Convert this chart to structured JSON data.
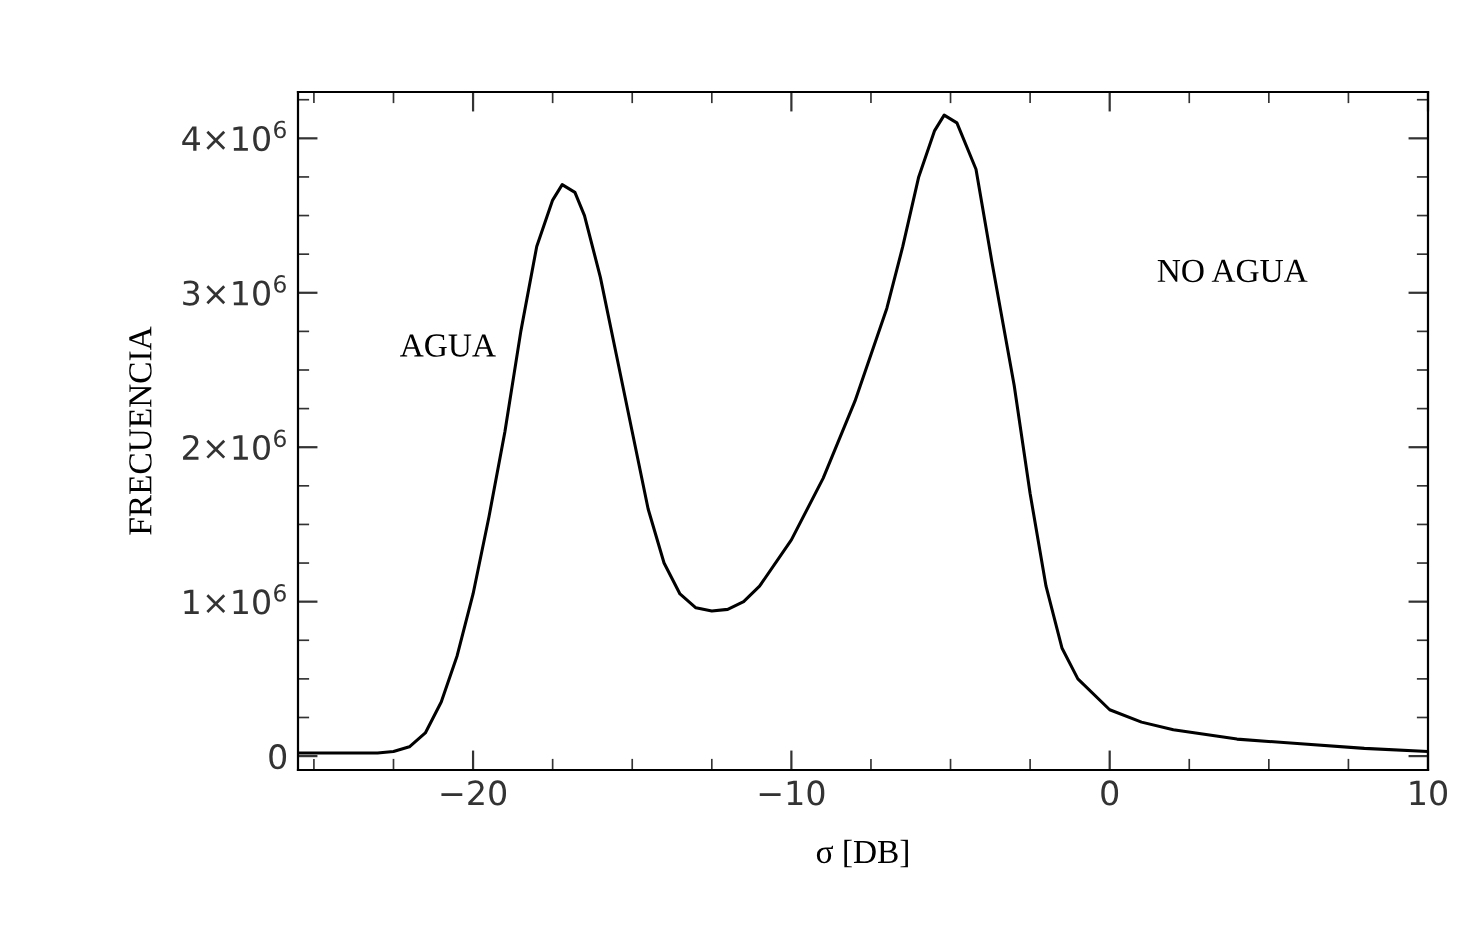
{
  "chart_data": {
    "type": "line",
    "xlabel": "σ [DB]",
    "ylabel": "FRECUENCIA",
    "x": [
      -25.5,
      -24,
      -23,
      -22.5,
      -22,
      -21.5,
      -21,
      -20.5,
      -20,
      -19.5,
      -19,
      -18.5,
      -18,
      -17.5,
      -17.2,
      -16.8,
      -16.5,
      -16,
      -15.5,
      -15,
      -14.5,
      -14,
      -13.5,
      -13,
      -12.5,
      -12,
      -11.5,
      -11,
      -10,
      -9,
      -8,
      -7,
      -6.5,
      -6,
      -5.5,
      -5.2,
      -4.8,
      -4.2,
      -3.7,
      -3,
      -2.5,
      -2,
      -1.5,
      -1,
      0,
      1,
      2,
      4,
      6,
      8,
      10
    ],
    "series": [
      {
        "color": "#000000",
        "values": [
          20000,
          20000,
          20000,
          30000,
          60000,
          150000,
          350000,
          650000,
          1050000,
          1550000,
          2100000,
          2750000,
          3300000,
          3600000,
          3700000,
          3650000,
          3500000,
          3100000,
          2600000,
          2100000,
          1600000,
          1250000,
          1050000,
          960000,
          940000,
          950000,
          1000000,
          1100000,
          1400000,
          1800000,
          2300000,
          2900000,
          3300000,
          3750000,
          4050000,
          4150000,
          4100000,
          3800000,
          3200000,
          2400000,
          1700000,
          1100000,
          700000,
          500000,
          300000,
          220000,
          170000,
          110000,
          80000,
          50000,
          30000
        ]
      }
    ],
    "xlim": [
      -25.5,
      10
    ],
    "ylim": [
      -90000,
      4300000
    ],
    "xticks": [
      -20,
      -10,
      0,
      10
    ],
    "yticks": [
      {
        "value": 0,
        "label": "0"
      },
      {
        "value": 1000000,
        "label": "1×10$^{6}$"
      },
      {
        "value": 2000000,
        "label": "2×10$^{6}$"
      },
      {
        "value": 3000000,
        "label": "3×10$^{6}$"
      },
      {
        "value": 4000000,
        "label": "4×10$^{6}$"
      }
    ],
    "annotations": [
      "AGUA",
      "NO AGUA"
    ],
    "grid": false,
    "legend": false,
    "marker": "none",
    "line_style": "solid"
  }
}
